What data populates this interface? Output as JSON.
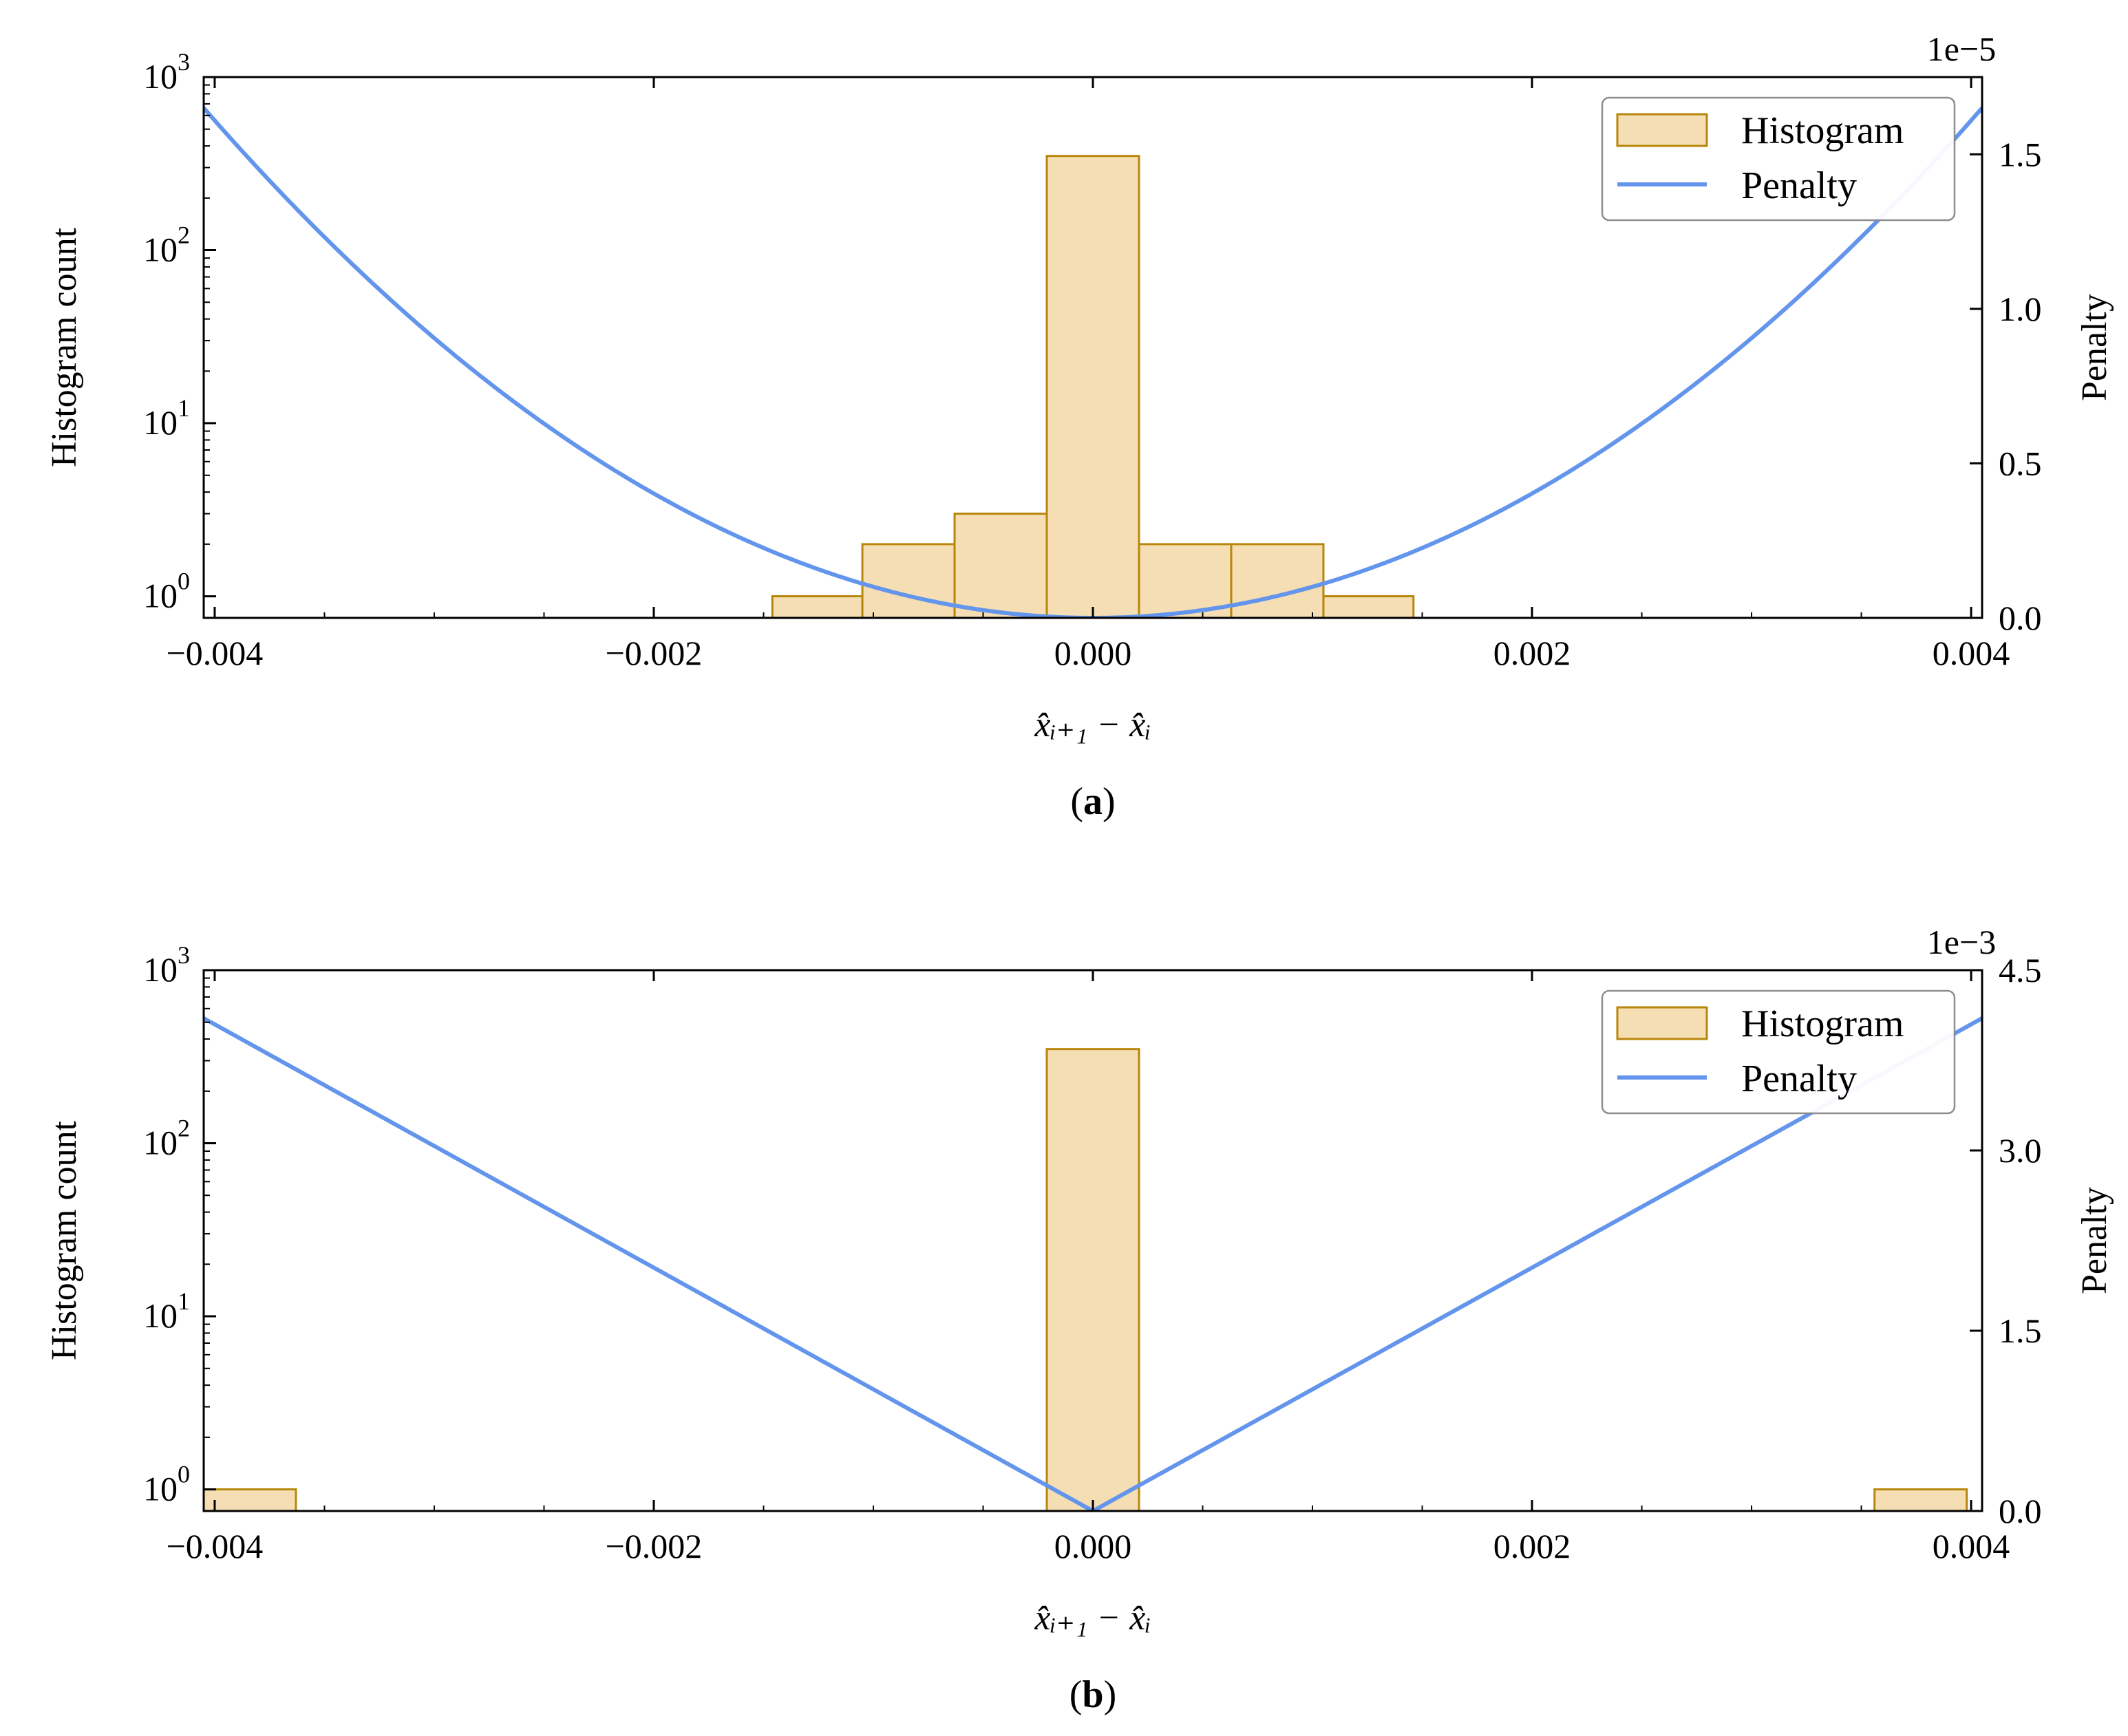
{
  "chart_data": [
    {
      "id": "a",
      "type": "bar",
      "caption": {
        "open": "(",
        "letter": "a",
        "close": ")"
      },
      "x": {
        "label": "x̂ᵢ₊₁ − x̂ᵢ",
        "lim": [
          -0.00405,
          0.00405
        ],
        "ticks": [
          -0.004,
          -0.002,
          0.0,
          0.002,
          0.004
        ],
        "tick_labels": [
          "−0.004",
          "−0.002",
          "0.000",
          "0.002",
          "0.004"
        ]
      },
      "y_left": {
        "label": "Histogram count",
        "scale": "log",
        "lim": [
          0.75,
          1000
        ],
        "ticks": [
          1,
          10,
          100,
          1000
        ],
        "tick_labels": [
          {
            "base": "10",
            "exp": "0"
          },
          {
            "base": "10",
            "exp": "1"
          },
          {
            "base": "10",
            "exp": "2"
          },
          {
            "base": "10",
            "exp": "3"
          }
        ]
      },
      "y_right": {
        "label": "Penalty",
        "lim": [
          0,
          1.75
        ],
        "ticks": [
          0,
          0.5,
          1.0,
          1.5
        ],
        "tick_labels": [
          "0.0",
          "0.5",
          "1.0",
          "1.5"
        ],
        "offset_text": "1e−5"
      },
      "histogram": {
        "name": "Histogram",
        "color": "#f5deb3",
        "edge_color": "#b8860b",
        "bins": [
          {
            "x0": -0.00146,
            "x1": -0.00105,
            "count": 1
          },
          {
            "x0": -0.00105,
            "x1": -0.00063,
            "count": 2
          },
          {
            "x0": -0.00063,
            "x1": -0.00021,
            "count": 3
          },
          {
            "x0": -0.00021,
            "x1": 0.00021,
            "count": 350
          },
          {
            "x0": 0.00021,
            "x1": 0.00063,
            "count": 2
          },
          {
            "x0": 0.00063,
            "x1": 0.00105,
            "count": 2
          },
          {
            "x0": 0.00105,
            "x1": 0.00146,
            "count": 1
          }
        ]
      },
      "penalty": {
        "name": "Penalty",
        "color": "#6495ed",
        "form": "quadratic",
        "coef": 1.0,
        "x_range": [
          -0.00405,
          0.00405
        ]
      },
      "legend": {
        "position": "upper right",
        "entries": [
          "Histogram",
          "Penalty"
        ]
      }
    },
    {
      "id": "b",
      "type": "bar",
      "caption": {
        "open": "(",
        "letter": "b",
        "close": ")"
      },
      "x": {
        "label": "x̂ᵢ₊₁ − x̂ᵢ",
        "lim": [
          -0.00405,
          0.00405
        ],
        "ticks": [
          -0.004,
          -0.002,
          0.0,
          0.002,
          0.004
        ],
        "tick_labels": [
          "−0.004",
          "−0.002",
          "0.000",
          "0.002",
          "0.004"
        ]
      },
      "y_left": {
        "label": "Histogram count",
        "scale": "log",
        "lim": [
          0.75,
          1000
        ],
        "ticks": [
          1,
          10,
          100,
          1000
        ],
        "tick_labels": [
          {
            "base": "10",
            "exp": "0"
          },
          {
            "base": "10",
            "exp": "1"
          },
          {
            "base": "10",
            "exp": "2"
          },
          {
            "base": "10",
            "exp": "3"
          }
        ]
      },
      "y_right": {
        "label": "Penalty",
        "lim": [
          0,
          4.5
        ],
        "ticks": [
          0,
          1.5,
          3.0,
          4.5
        ],
        "tick_labels": [
          "0.0",
          "1.5",
          "3.0",
          "4.5"
        ],
        "offset_text": "1e−3"
      },
      "histogram": {
        "name": "Histogram",
        "color": "#f5deb3",
        "edge_color": "#b8860b",
        "bins": [
          {
            "x0": -0.00405,
            "x1": -0.00363,
            "count": 1
          },
          {
            "x0": -0.00021,
            "x1": 0.00021,
            "count": 350
          },
          {
            "x0": 0.00356,
            "x1": 0.00398,
            "count": 1
          }
        ]
      },
      "penalty": {
        "name": "Penalty",
        "color": "#6495ed",
        "form": "absolute",
        "coef": 1.0,
        "x_range": [
          -0.00405,
          0.00405
        ]
      },
      "legend": {
        "position": "upper right",
        "entries": [
          "Histogram",
          "Penalty"
        ]
      }
    }
  ]
}
